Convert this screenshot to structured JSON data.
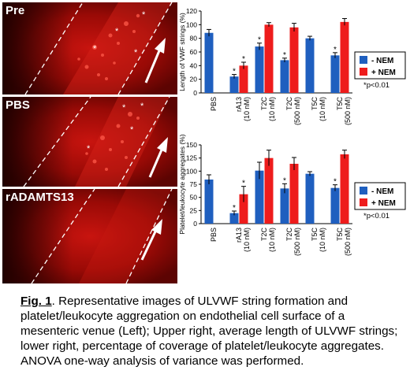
{
  "images": {
    "panels": [
      {
        "label": "Pre"
      },
      {
        "label": "PBS"
      },
      {
        "label": "rADAMTS13"
      }
    ]
  },
  "legend": {
    "minus_nem": "- NEM",
    "plus_nem": "+ NEM",
    "pvalue_note": "*p<0.01"
  },
  "colors": {
    "minus_nem": "#1f5fbf",
    "plus_nem": "#ee1c1c"
  },
  "chart_data": [
    {
      "type": "bar",
      "ylabel": "Length of VWF strings (%)",
      "ylim": [
        0,
        120
      ],
      "yticks": [
        0,
        20,
        40,
        60,
        80,
        100,
        120
      ],
      "categories": [
        {
          "name": "PBS",
          "sub": ""
        },
        {
          "name": "rA13",
          "sub": "(10 nM)"
        },
        {
          "name": "T2C",
          "sub": "(10 nM)"
        },
        {
          "name": "T2C",
          "sub": "(500 nM)"
        },
        {
          "name": "T5C",
          "sub": "(10 nM)"
        },
        {
          "name": "T5C",
          "sub": "(500 nM)"
        }
      ],
      "series": [
        {
          "name": "- NEM",
          "values": [
            88,
            24,
            68,
            48,
            80,
            55
          ],
          "errors": [
            5,
            3,
            5,
            3,
            3,
            4
          ],
          "sig": [
            "",
            "*",
            "*",
            "*",
            "",
            "*"
          ]
        },
        {
          "name": "+ NEM",
          "values": [
            null,
            40,
            100,
            96,
            null,
            104
          ],
          "errors": [
            null,
            5,
            3,
            6,
            null,
            5
          ],
          "sig": [
            "",
            "*",
            "",
            "",
            "",
            ""
          ]
        }
      ]
    },
    {
      "type": "bar",
      "ylabel": "Platelet/leukocyte aggregates (%)",
      "ylim": [
        0,
        150
      ],
      "yticks": [
        0,
        25,
        50,
        75,
        100,
        125,
        150
      ],
      "categories": [
        {
          "name": "PBS",
          "sub": ""
        },
        {
          "name": "rA13",
          "sub": "(10 nM)"
        },
        {
          "name": "T2C",
          "sub": "(10 nM)"
        },
        {
          "name": "T2C",
          "sub": "(500 nM)"
        },
        {
          "name": "T5C",
          "sub": "(10 nM)"
        },
        {
          "name": "T5C",
          "sub": "(500 nM)"
        }
      ],
      "series": [
        {
          "name": "- NEM",
          "values": [
            84,
            20,
            101,
            67,
            95,
            68
          ],
          "errors": [
            9,
            4,
            16,
            9,
            4,
            6
          ],
          "sig": [
            "",
            "*",
            "",
            "*",
            "",
            "*"
          ]
        },
        {
          "name": "+ NEM",
          "values": [
            null,
            56,
            125,
            114,
            null,
            132
          ],
          "errors": [
            null,
            15,
            15,
            12,
            null,
            8
          ],
          "sig": [
            "",
            "*",
            "",
            "",
            "",
            ""
          ]
        }
      ]
    }
  ],
  "caption": {
    "label": "Fig. 1",
    "text": ". Representative images of ULVWF string formation and platelet/leukocyte aggregation on endothelial cell surface of a mesenteric venue (Left); Upper right, average length of ULVWF strings; lower right, percentage of coverage of platelet/leukocyte aggregates. ANOVA one-way analysis of variance was performed."
  }
}
